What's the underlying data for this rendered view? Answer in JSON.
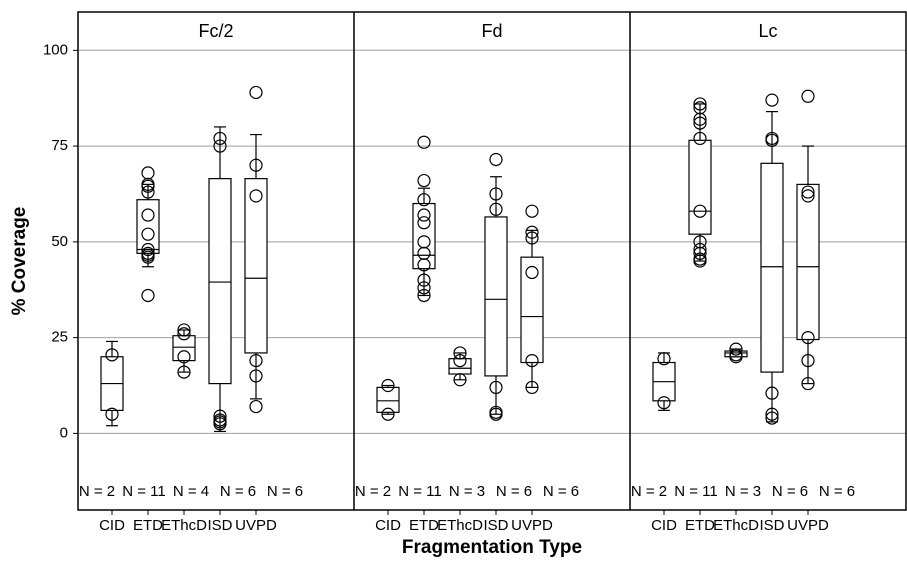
{
  "chart_data": {
    "type": "box",
    "ylabel": "% Coverage",
    "xlabel": "Fragmentation Type",
    "ylim": [
      -20,
      110
    ],
    "yticks": [
      0,
      25,
      50,
      75,
      100
    ],
    "grid": true,
    "panels": [
      {
        "title": "Fc/2",
        "categories": [
          "CID",
          "ETD",
          "EThcD",
          "ISD",
          "UVPD"
        ],
        "n_labels": [
          "N = 2",
          "N = 11",
          "N = 4",
          "N = 6",
          "N = 6"
        ],
        "boxes": [
          {
            "whisker_low": 2,
            "q1": 6,
            "median": 13,
            "q3": 20,
            "whisker_high": 24,
            "points": [
              20.5,
              5
            ]
          },
          {
            "whisker_low": 43.5,
            "q1": 47,
            "median": 48,
            "q3": 61,
            "whisker_high": 65,
            "points": [
              68,
              65,
              64.5,
              63,
              57,
              52,
              48,
              47,
              46.5,
              46,
              36
            ]
          },
          {
            "whisker_low": 16,
            "q1": 19,
            "median": 22.5,
            "q3": 25.5,
            "whisker_high": 27,
            "points": [
              27,
              26,
              20,
              16
            ]
          },
          {
            "whisker_low": 0.5,
            "q1": 13,
            "median": 39.5,
            "q3": 66.5,
            "whisker_high": 80,
            "points": [
              77,
              75,
              4.5,
              3.5,
              3,
              2.5
            ]
          },
          {
            "whisker_low": 9,
            "q1": 21,
            "median": 40.5,
            "q3": 66.5,
            "whisker_high": 78,
            "points": [
              89,
              70,
              62,
              19,
              15,
              7
            ]
          }
        ]
      },
      {
        "title": "Fd",
        "categories": [
          "CID",
          "ETD",
          "EThcD",
          "ISD",
          "UVPD"
        ],
        "n_labels": [
          "N = 2",
          "N = 11",
          "N = 3",
          "N = 6",
          "N = 6"
        ],
        "boxes": [
          {
            "whisker_low": 5,
            "q1": 5.5,
            "median": 8.5,
            "q3": 12,
            "whisker_high": 12.5,
            "points": [
              12.5,
              5
            ]
          },
          {
            "whisker_low": 36,
            "q1": 43,
            "median": 46.5,
            "q3": 60,
            "whisker_high": 64,
            "points": [
              76,
              66,
              61,
              57,
              55,
              50,
              47,
              44,
              40,
              38,
              36
            ]
          },
          {
            "whisker_low": 14,
            "q1": 15.5,
            "median": 17,
            "q3": 19.5,
            "whisker_high": 21,
            "points": [
              21,
              19,
              14
            ]
          },
          {
            "whisker_low": 5,
            "q1": 15,
            "median": 35,
            "q3": 56.5,
            "whisker_high": 67,
            "points": [
              71.5,
              62.5,
              58.5,
              12,
              5.5,
              5
            ]
          },
          {
            "whisker_low": 12,
            "q1": 18.5,
            "median": 30.5,
            "q3": 46,
            "whisker_high": 53,
            "points": [
              58,
              52.5,
              51,
              42,
              19,
              12
            ]
          }
        ]
      },
      {
        "title": "Lc",
        "categories": [
          "CID",
          "ETD",
          "EThcD",
          "ISD",
          "UVPD"
        ],
        "n_labels": [
          "N = 2",
          "N = 11",
          "N = 3",
          "N = 6",
          "N = 6"
        ],
        "boxes": [
          {
            "whisker_low": 6,
            "q1": 8.5,
            "median": 13.5,
            "q3": 18.5,
            "whisker_high": 21,
            "points": [
              19.5,
              8
            ]
          },
          {
            "whisker_low": 45,
            "q1": 52,
            "median": 58,
            "q3": 76.5,
            "whisker_high": 86,
            "points": [
              86,
              85,
              82,
              81,
              77,
              58,
              50,
              48,
              47,
              45.5,
              45
            ]
          },
          {
            "whisker_low": 20,
            "q1": 20,
            "median": 21,
            "q3": 21.5,
            "whisker_high": 22,
            "points": [
              22,
              20.5,
              20
            ]
          },
          {
            "whisker_low": 3,
            "q1": 16,
            "median": 43.5,
            "q3": 70.5,
            "whisker_high": 84,
            "points": [
              87,
              77,
              76.5,
              10.5,
              5,
              4
            ]
          },
          {
            "whisker_low": 13,
            "q1": 24.5,
            "median": 43.5,
            "q3": 65,
            "whisker_high": 75,
            "points": [
              88,
              63,
              62,
              25,
              19,
              13
            ]
          }
        ]
      }
    ]
  }
}
